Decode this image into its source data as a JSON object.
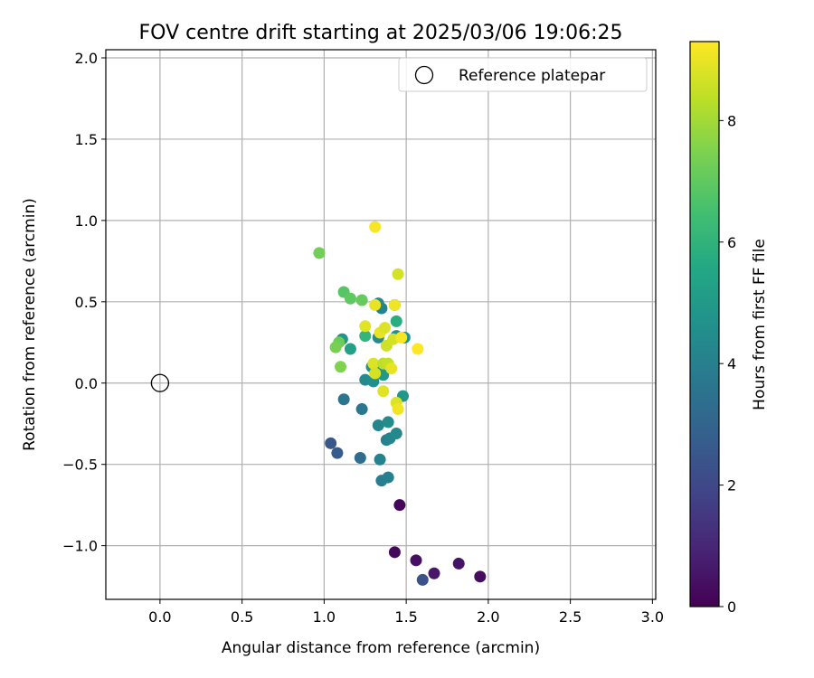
{
  "chart_data": {
    "type": "scatter",
    "title": "FOV centre drift starting at 2025/03/06 19:06:25",
    "xlabel": "Angular distance from reference (arcmin)",
    "ylabel": "Rotation from reference (arcmin)",
    "xlim": [
      -0.33,
      3.02
    ],
    "ylim": [
      -1.33,
      2.05
    ],
    "xticks": [
      "0.0",
      "0.5",
      "1.0",
      "1.5",
      "2.0",
      "2.5",
      "3.0"
    ],
    "yticks": [
      "−1.0",
      "−0.5",
      "0.0",
      "0.5",
      "1.0",
      "1.5",
      "2.0"
    ],
    "xtick_values": [
      0,
      0.5,
      1.0,
      1.5,
      2.0,
      2.5,
      3.0
    ],
    "ytick_values": [
      -1.0,
      -0.5,
      0,
      0.5,
      1.0,
      1.5,
      2.0
    ],
    "grid": true,
    "legend": {
      "placement": "top-right",
      "entries": [
        "Reference platepar"
      ]
    },
    "colormap": "viridis",
    "colorbar": {
      "label": "Hours from first FF file",
      "range": [
        0,
        9.3
      ],
      "ticks": [
        "0",
        "2",
        "4",
        "6",
        "8"
      ],
      "tick_values": [
        0,
        2,
        4,
        6,
        8
      ]
    },
    "reference": {
      "name": "Reference platepar",
      "x": 0.0,
      "y": 0.0
    },
    "series": [
      {
        "points": [
          {
            "x": 1.46,
            "y": -0.75,
            "h": 0.1
          },
          {
            "x": 1.43,
            "y": -1.04,
            "h": 0.2
          },
          {
            "x": 1.56,
            "y": -1.09,
            "h": 0.4
          },
          {
            "x": 1.67,
            "y": -1.17,
            "h": 0.6
          },
          {
            "x": 1.82,
            "y": -1.11,
            "h": 0.5
          },
          {
            "x": 1.95,
            "y": -1.19,
            "h": 0.3
          },
          {
            "x": 1.6,
            "y": -1.21,
            "h": 2.3
          },
          {
            "x": 1.04,
            "y": -0.37,
            "h": 2.5
          },
          {
            "x": 1.08,
            "y": -0.43,
            "h": 2.7
          },
          {
            "x": 1.22,
            "y": -0.46,
            "h": 3.3
          },
          {
            "x": 1.35,
            "y": -0.6,
            "h": 3.9
          },
          {
            "x": 1.39,
            "y": -0.58,
            "h": 4.0
          },
          {
            "x": 1.34,
            "y": -0.47,
            "h": 4.1
          },
          {
            "x": 1.12,
            "y": -0.1,
            "h": 3.6
          },
          {
            "x": 1.23,
            "y": -0.16,
            "h": 3.7
          },
          {
            "x": 1.33,
            "y": -0.26,
            "h": 4.2
          },
          {
            "x": 1.39,
            "y": -0.24,
            "h": 4.5
          },
          {
            "x": 1.38,
            "y": -0.35,
            "h": 4.0
          },
          {
            "x": 1.4,
            "y": -0.34,
            "h": 4.2
          },
          {
            "x": 1.44,
            "y": -0.31,
            "h": 4.3
          },
          {
            "x": 1.48,
            "y": -0.08,
            "h": 4.9
          },
          {
            "x": 1.25,
            "y": 0.02,
            "h": 4.4
          },
          {
            "x": 1.3,
            "y": 0.01,
            "h": 4.6
          },
          {
            "x": 1.29,
            "y": 0.1,
            "h": 4.7
          },
          {
            "x": 1.32,
            "y": 0.09,
            "h": 4.5
          },
          {
            "x": 1.36,
            "y": 0.05,
            "h": 5.0
          },
          {
            "x": 1.11,
            "y": 0.27,
            "h": 4.8
          },
          {
            "x": 1.16,
            "y": 0.21,
            "h": 5.3
          },
          {
            "x": 1.33,
            "y": 0.28,
            "h": 4.4
          },
          {
            "x": 1.35,
            "y": 0.46,
            "h": 4.1
          },
          {
            "x": 1.33,
            "y": 0.49,
            "h": 4.3
          },
          {
            "x": 1.43,
            "y": 0.48,
            "h": 4.0
          },
          {
            "x": 1.44,
            "y": 0.29,
            "h": 4.6
          },
          {
            "x": 1.49,
            "y": 0.28,
            "h": 4.8
          },
          {
            "x": 1.44,
            "y": 0.38,
            "h": 5.8
          },
          {
            "x": 1.25,
            "y": 0.29,
            "h": 6.1
          },
          {
            "x": 1.09,
            "y": 0.25,
            "h": 7.2
          },
          {
            "x": 1.07,
            "y": 0.22,
            "h": 7.4
          },
          {
            "x": 1.1,
            "y": 0.1,
            "h": 7.5
          },
          {
            "x": 1.12,
            "y": 0.56,
            "h": 6.8
          },
          {
            "x": 1.16,
            "y": 0.52,
            "h": 7.0
          },
          {
            "x": 1.23,
            "y": 0.51,
            "h": 7.1
          },
          {
            "x": 0.97,
            "y": 0.8,
            "h": 7.3
          },
          {
            "x": 1.31,
            "y": 0.96,
            "h": 9.2
          },
          {
            "x": 1.45,
            "y": 0.67,
            "h": 8.7
          },
          {
            "x": 1.31,
            "y": 0.48,
            "h": 9.0
          },
          {
            "x": 1.43,
            "y": 0.48,
            "h": 9.1
          },
          {
            "x": 1.25,
            "y": 0.35,
            "h": 8.9
          },
          {
            "x": 1.34,
            "y": 0.31,
            "h": 9.0
          },
          {
            "x": 1.37,
            "y": 0.34,
            "h": 8.8
          },
          {
            "x": 1.38,
            "y": 0.23,
            "h": 8.6
          },
          {
            "x": 1.42,
            "y": 0.27,
            "h": 8.7
          },
          {
            "x": 1.47,
            "y": 0.28,
            "h": 9.2
          },
          {
            "x": 1.57,
            "y": 0.21,
            "h": 9.3
          },
          {
            "x": 1.3,
            "y": 0.12,
            "h": 8.8
          },
          {
            "x": 1.36,
            "y": 0.12,
            "h": 8.4
          },
          {
            "x": 1.39,
            "y": 0.12,
            "h": 8.5
          },
          {
            "x": 1.41,
            "y": 0.09,
            "h": 9.0
          },
          {
            "x": 1.31,
            "y": 0.06,
            "h": 8.7
          },
          {
            "x": 1.36,
            "y": -0.05,
            "h": 8.9
          },
          {
            "x": 1.44,
            "y": -0.12,
            "h": 8.8
          },
          {
            "x": 1.45,
            "y": -0.16,
            "h": 9.1
          }
        ]
      }
    ]
  }
}
